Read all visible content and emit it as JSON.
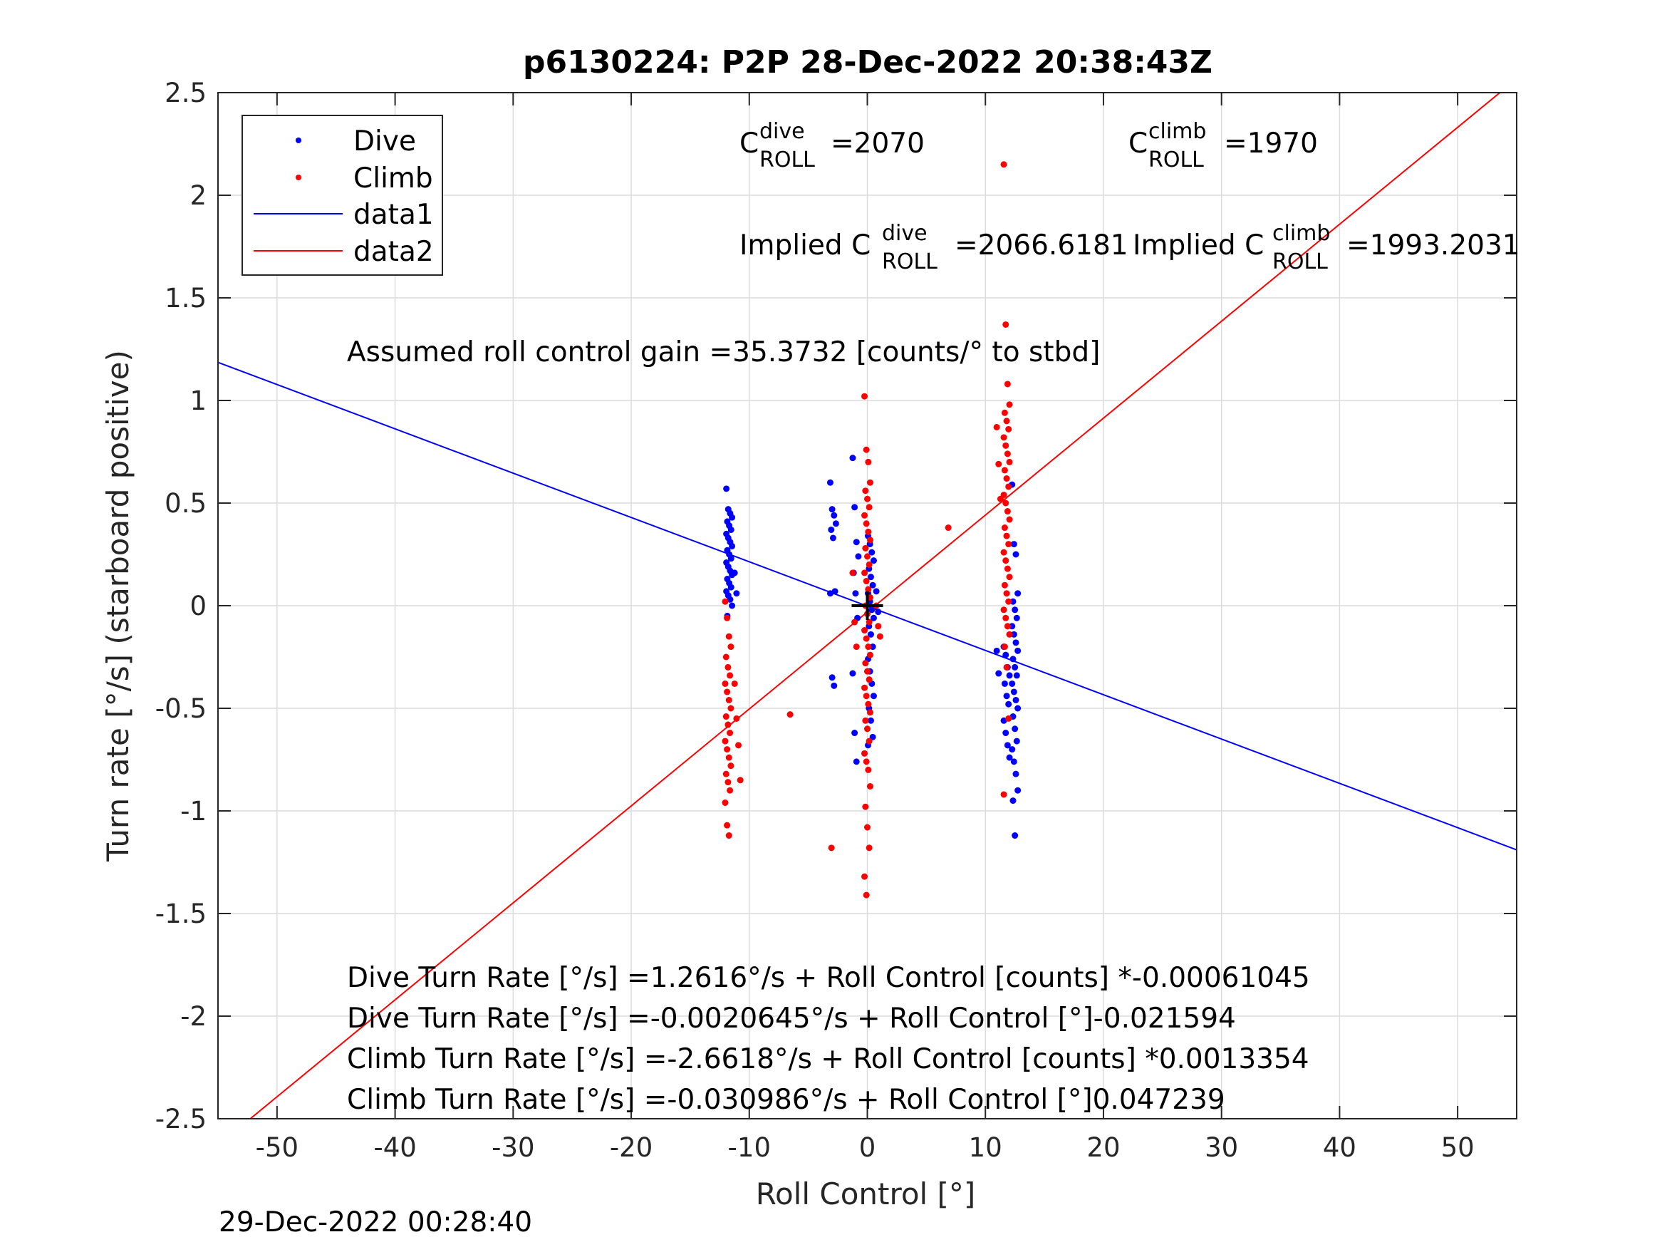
{
  "chart_data": {
    "type": "scatter",
    "title": "p6130224: P2P 28-Dec-2022 20:38:43Z",
    "xlabel": "Roll Control [°]",
    "ylabel": "Turn rate [°/s] (starboard positive)",
    "xlim": [
      -55,
      55
    ],
    "ylim": [
      -2.5,
      2.5
    ],
    "xticks": [
      -50,
      -40,
      -30,
      -20,
      -10,
      0,
      10,
      20,
      30,
      40,
      50
    ],
    "yticks": [
      -2.5,
      -2,
      -1.5,
      -1,
      -0.5,
      0,
      0.5,
      1,
      1.5,
      2,
      2.5
    ],
    "ytick_labels": [
      "-2.5",
      "-2",
      "-1.5",
      "-1",
      "-0.5",
      "0",
      "0.5",
      "1",
      "1.5",
      "2",
      "2.5"
    ],
    "grid": true,
    "legend": {
      "placement": "top-left",
      "entries": [
        "Dive",
        "Climb",
        "data1",
        "data2"
      ]
    },
    "colors": {
      "dive": "#0000ff",
      "climb": "#ff0000",
      "marker": "#000000"
    },
    "series": [
      {
        "name": "Dive",
        "kind": "points",
        "clusters": [
          {
            "x": -11.7,
            "y": [
              0.57,
              0.47,
              0.45,
              0.43,
              0.41,
              0.39,
              0.37,
              0.35,
              0.33,
              0.31,
              0.29,
              0.27,
              0.25,
              0.23,
              0.21,
              0.19,
              0.17,
              0.15,
              0.13,
              0.11,
              0.09,
              0.07,
              0.05,
              0.03,
              0.0,
              -0.05
            ]
          },
          {
            "x": -11.0,
            "y": [
              0.16,
              0.06
            ]
          },
          {
            "x": -2.9,
            "y": [
              0.6,
              0.47,
              0.44,
              0.4,
              0.37,
              0.33,
              0.07,
              0.06,
              -0.35,
              -0.39
            ]
          },
          {
            "x": -1.0,
            "y": [
              0.72,
              0.48,
              0.31,
              0.24,
              0.16,
              0.06,
              -0.06,
              -0.33,
              -0.62,
              -0.76
            ]
          },
          {
            "x": 0.3,
            "y": [
              0.34,
              0.3,
              0.26,
              0.22,
              0.18,
              0.14,
              0.1,
              0.06,
              0.02,
              -0.02,
              -0.06,
              -0.1,
              -0.14,
              -0.2,
              -0.26,
              -0.32,
              -0.38,
              -0.44,
              -0.5,
              -0.56,
              -0.64,
              -0.68
            ]
          },
          {
            "x": 1.0,
            "y": [
              0.07,
              -0.03
            ]
          },
          {
            "x": 11.8,
            "y": [
              -0.2,
              -0.24,
              -0.3,
              -0.34,
              -0.38,
              -0.44,
              -0.48,
              -0.56,
              -0.62,
              -0.68,
              -0.74
            ]
          },
          {
            "x": 11.2,
            "y": [
              -0.22,
              -0.33
            ]
          },
          {
            "x": 12.5,
            "y": [
              0.59,
              0.3,
              0.25,
              0.06,
              0.02,
              -0.02,
              -0.06,
              -0.1,
              -0.14,
              -0.18,
              -0.22,
              -0.26,
              -0.3,
              -0.34,
              -0.38,
              -0.42,
              -0.46,
              -0.5,
              -0.54,
              -0.6,
              -0.66,
              -0.7,
              -0.76,
              -0.82,
              -0.9,
              -0.95,
              -1.12
            ]
          }
        ]
      },
      {
        "name": "Climb",
        "kind": "points",
        "clusters": [
          {
            "x": -11.8,
            "y": [
              0.02,
              -0.06,
              -0.15,
              -0.2,
              -0.25,
              -0.3,
              -0.34,
              -0.38,
              -0.42,
              -0.46,
              -0.5,
              -0.54,
              -0.58,
              -0.62,
              -0.66,
              -0.7,
              -0.74,
              -0.78,
              -0.82,
              -0.86,
              -0.9,
              -0.96,
              -1.07,
              -1.12
            ]
          },
          {
            "x": -11.0,
            "y": [
              -0.38,
              -0.55,
              -0.68,
              -0.85
            ]
          },
          {
            "x": -6.3,
            "y": [
              -0.53
            ]
          },
          {
            "x": -2.8,
            "y": [
              -1.18
            ]
          },
          {
            "x": 0.0,
            "y": [
              1.02,
              0.76,
              0.7,
              0.6,
              0.56,
              0.52,
              0.48,
              0.44,
              0.4,
              0.36,
              0.32,
              0.28,
              0.24,
              0.2,
              0.16,
              0.12,
              0.08,
              0.04,
              0.0,
              -0.04,
              -0.08,
              -0.12,
              -0.16,
              -0.2,
              -0.24,
              -0.28,
              -0.32,
              -0.36,
              -0.4,
              -0.44,
              -0.48,
              -0.52,
              -0.56,
              -0.6,
              -0.66,
              -0.72,
              -0.76,
              -0.8,
              -0.88,
              -0.98,
              -1.08,
              -1.18,
              -1.32,
              -1.41
            ]
          },
          {
            "x": -1.0,
            "y": [
              0.16,
              -0.08,
              -0.2
            ]
          },
          {
            "x": 1.0,
            "y": [
              0.0,
              -0.1,
              -0.15
            ]
          },
          {
            "x": 7.1,
            "y": [
              0.38
            ]
          },
          {
            "x": 11.8,
            "y": [
              2.15,
              1.37,
              1.08,
              0.98,
              0.94,
              0.9,
              0.86,
              0.82,
              0.78,
              0.74,
              0.7,
              0.66,
              0.62,
              0.58,
              0.54,
              0.5,
              0.46,
              0.42,
              0.38,
              0.34,
              0.3,
              0.26,
              0.22,
              0.18,
              0.14,
              0.1,
              0.06,
              0.02,
              -0.02,
              -0.06,
              -0.1,
              -0.14,
              -0.2,
              -0.3,
              -0.55,
              -0.92
            ]
          },
          {
            "x": 11.2,
            "y": [
              0.87,
              0.69,
              0.52
            ]
          }
        ]
      },
      {
        "name": "data1",
        "kind": "line",
        "slope": -0.021594,
        "intercept": -0.0020645
      },
      {
        "name": "data2",
        "kind": "line",
        "slope": 0.047239,
        "intercept": -0.030986
      }
    ],
    "annotations": {
      "c_dive": {
        "prefix": "C",
        "sup": "dive",
        "sub": "ROLL",
        "value": "=2070"
      },
      "c_climb": {
        "prefix": "C",
        "sup": "climb",
        "sub": "ROLL",
        "value": "=1970"
      },
      "implied_dive": {
        "prefix": "Implied C",
        "sup": "dive",
        "sub": "ROLL",
        "value": "=2066.6181"
      },
      "implied_climb": {
        "prefix": "Implied C",
        "sup": "climb",
        "sub": "ROLL",
        "value": "=1993.2031"
      },
      "gain": "Assumed roll control gain =35.3732 [counts/° to stbd]",
      "equations": [
        "Dive Turn Rate [°/s] =1.2616°/s + Roll Control [counts] *-0.00061045",
        "Dive Turn Rate [°/s] =-0.0020645°/s + Roll Control [°]-0.021594",
        "Climb Turn Rate [°/s] =-2.6618°/s + Roll Control [counts] *0.0013354",
        "Climb Turn Rate [°/s] =-0.030986°/s + Roll Control [°]0.047239"
      ]
    },
    "timestamp": "29-Dec-2022 00:28:40"
  }
}
